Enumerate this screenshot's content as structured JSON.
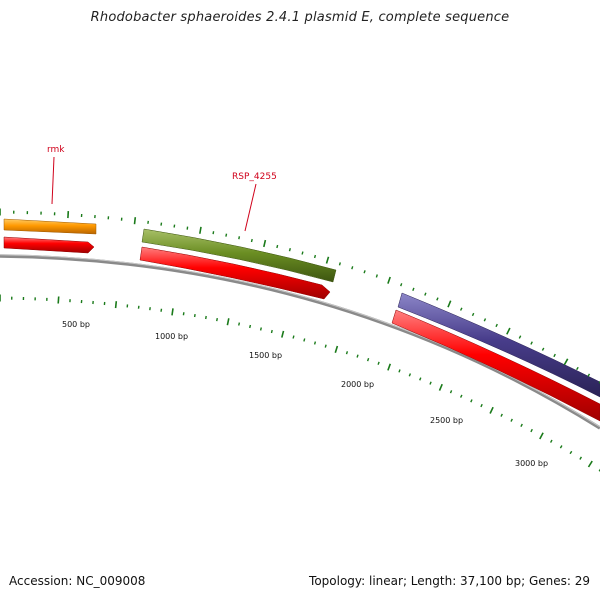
{
  "title": "Rhodobacter sphaeroides 2.4.1 plasmid E, complete sequence",
  "footer": {
    "accession": "Accession: NC_009008",
    "summary": "Topology: linear; Length: 37,100 bp; Genes: 29"
  },
  "scale_labels": [
    "500 bp",
    "1000 bp",
    "1500 bp",
    "2000 bp",
    "2500 bp",
    "3000 bp"
  ],
  "gene_labels": [
    "rmk",
    "RSP_4255"
  ],
  "colors": {
    "backbone": "#8a8a8a",
    "cds_strand": "#ff0000",
    "gene_orange": "#ff9900",
    "gene_olive": "#6b8e23",
    "gene_purple": "#483d8b",
    "tick": "#1a7a1a",
    "label_red": "#d0021b"
  }
}
